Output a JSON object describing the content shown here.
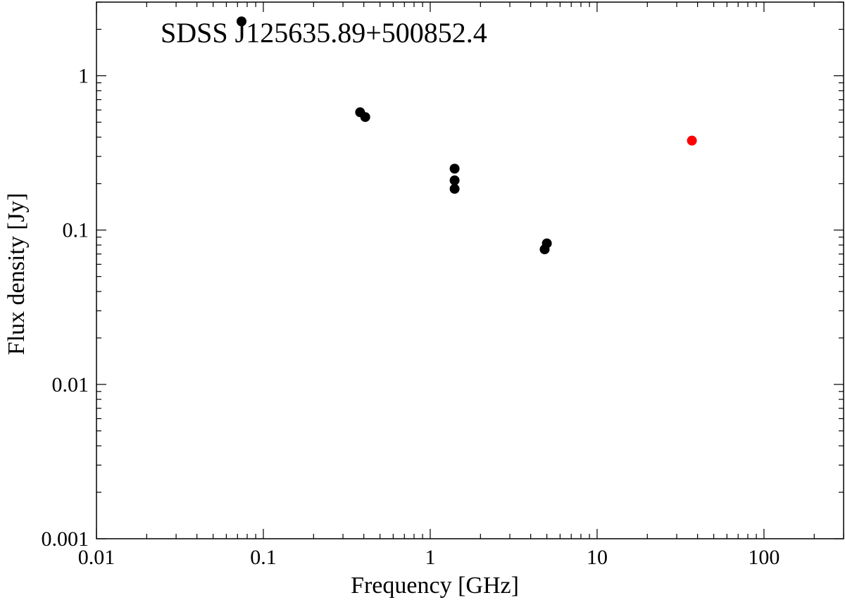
{
  "chart_data": {
    "type": "scatter",
    "title": "SDSS J125635.89+500852.4",
    "xlabel": "Frequency [GHz]",
    "ylabel": "Flux density [Jy]",
    "xscale": "log",
    "yscale": "log",
    "xlim": [
      0.01,
      300
    ],
    "ylim": [
      0.001,
      3
    ],
    "xticks": [
      {
        "value": 0.01,
        "label": "0.01"
      },
      {
        "value": 0.1,
        "label": "0.1"
      },
      {
        "value": 1,
        "label": "1"
      },
      {
        "value": 10,
        "label": "10"
      },
      {
        "value": 100,
        "label": "100"
      }
    ],
    "yticks": [
      {
        "value": 0.001,
        "label": "0.001"
      },
      {
        "value": 0.01,
        "label": "0.01"
      },
      {
        "value": 0.1,
        "label": "0.1"
      },
      {
        "value": 1,
        "label": "1"
      }
    ],
    "grid": false,
    "series": [
      {
        "color": "#000000",
        "points": [
          {
            "x": 0.074,
            "y": 2.25
          },
          {
            "x": 0.38,
            "y": 0.58
          },
          {
            "x": 0.408,
            "y": 0.54
          },
          {
            "x": 1.4,
            "y": 0.25
          },
          {
            "x": 1.4,
            "y": 0.21
          },
          {
            "x": 1.4,
            "y": 0.185
          },
          {
            "x": 4.85,
            "y": 0.075
          },
          {
            "x": 5.0,
            "y": 0.082
          }
        ]
      },
      {
        "color": "#ff0000",
        "points": [
          {
            "x": 37,
            "y": 0.38
          }
        ]
      }
    ]
  }
}
